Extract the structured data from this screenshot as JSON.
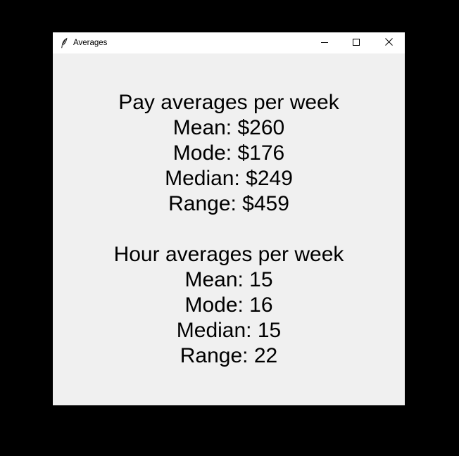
{
  "window": {
    "title": "Averages",
    "icon": "feather-icon",
    "controls": [
      "minimize-icon",
      "maximize-icon",
      "close-icon"
    ]
  },
  "colors": {
    "background": "#000000",
    "window_bg": "#f0f0f0",
    "titlebar_bg": "#ffffff",
    "text": "#000000"
  },
  "pay": {
    "heading": "Pay averages per week",
    "mean": "Mean: $260",
    "mode": "Mode: $176",
    "median": "Median: $249",
    "range": "Range: $459"
  },
  "hours": {
    "heading": "Hour averages per week",
    "mean": "Mean: 15",
    "mode": "Mode: 16",
    "median": "Median: 15",
    "range": "Range: 22"
  }
}
